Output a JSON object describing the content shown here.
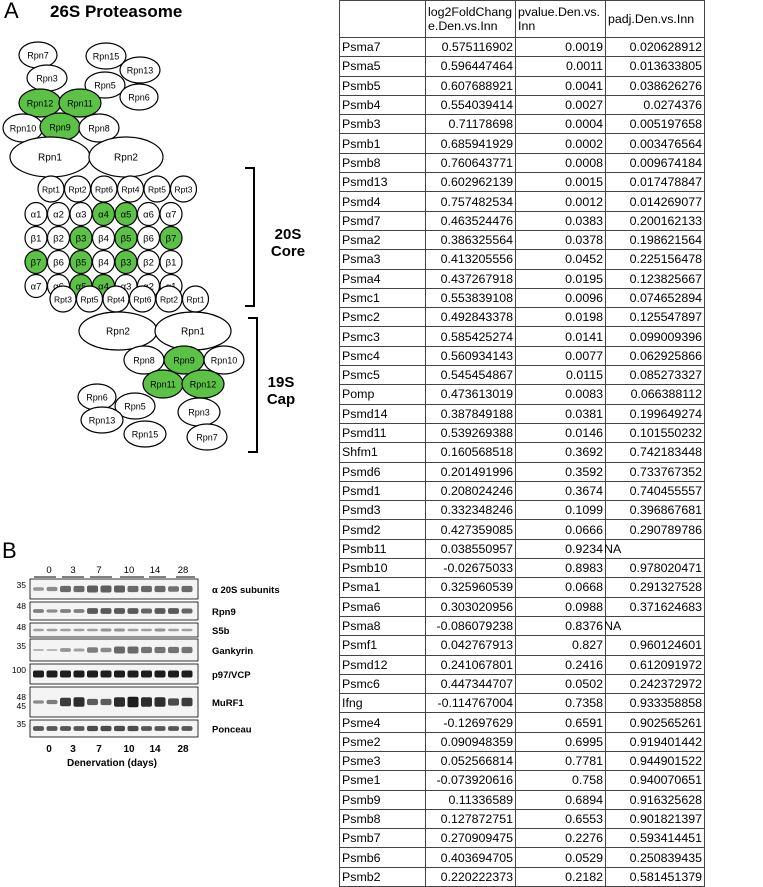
{
  "panel_a": {
    "letter": "A",
    "title": "26S Proteasome",
    "top_cap": {
      "rpn_subunits": [
        "Rpn7",
        "Rpn15",
        "Rpn3",
        "Rpn13",
        "Rpn5",
        "Rpn6",
        "Rpn12",
        "Rpn11",
        "Rpn10",
        "Rpn9",
        "Rpn8",
        "Rpn1",
        "Rpn2"
      ],
      "rpt_ring": [
        "Rpt1",
        "Rpt2",
        "Rpt6",
        "Rpt4",
        "Rpt5",
        "Rpt3"
      ]
    },
    "core_rows": [
      [
        "α1",
        "α2",
        "α3",
        "α4",
        "α5",
        "α6",
        "α7"
      ],
      [
        "β1",
        "β2",
        "β3",
        "β4",
        "β5",
        "β6",
        "β7"
      ],
      [
        "β7",
        "β6",
        "β5",
        "β4",
        "β3",
        "β2",
        "β1"
      ],
      [
        "α7",
        "α6",
        "α5",
        "α4",
        "α3",
        "α2",
        "α1"
      ]
    ],
    "bottom_rpt_ring": [
      "Rpt3",
      "Rpt5",
      "Rpt4",
      "Rpt6",
      "Rpt2",
      "Rpt1"
    ],
    "bottom_cap": {
      "rpn_subunits": [
        "Rpn2",
        "Rpn1",
        "Rpn8",
        "Rpn9",
        "Rpn10",
        "Rpn11",
        "Rpn12",
        "Rpn6",
        "Rpn5",
        "Rpn3",
        "Rpn13",
        "Rpn15",
        "Rpn7"
      ]
    },
    "core_label_line1": "20S",
    "core_label_line2": "Core",
    "cap_label_line1": "19S",
    "cap_label_line2": "Cap",
    "highlight_color": "#5cc246"
  },
  "panel_b": {
    "letter": "B",
    "days_top": [
      "0",
      "3",
      "7",
      "10",
      "14",
      "28"
    ],
    "days_bottom": [
      "0",
      "3",
      "7",
      "10",
      "14",
      "28"
    ],
    "x_axis_label": "Denervation (days)",
    "blots": [
      {
        "mw": "35",
        "label": "α 20S subunits"
      },
      {
        "mw": "48",
        "label": "Rpn9"
      },
      {
        "mw": "48",
        "label": "S5b"
      },
      {
        "mw": "35",
        "label": "Gankyrin"
      },
      {
        "mw": "100",
        "label": "p97/VCP"
      },
      {
        "mw": "48",
        "label": "MuRF1"
      },
      {
        "mw": "35",
        "label": "Ponceau"
      }
    ],
    "mw_extra": "45"
  },
  "table": {
    "headers": [
      "",
      "log2FoldChange.Den.vs.Inn",
      "pvalue.Den.vs.Inn",
      "padj.Den.vs.Inn"
    ],
    "rows": [
      [
        "Psma7",
        "0.575116902",
        "0.0019",
        "0.020628912"
      ],
      [
        "Psma5",
        "0.596447464",
        "0.0011",
        "0.013633805"
      ],
      [
        "Psmb5",
        "0.607688921",
        "0.0041",
        "0.038626276"
      ],
      [
        "Psmb4",
        "0.554039414",
        "0.0027",
        "0.0274376"
      ],
      [
        "Psmb3",
        "0.71178698",
        "0.0004",
        "0.005197658"
      ],
      [
        "Psmb1",
        "0.685941929",
        "0.0002",
        "0.003476564"
      ],
      [
        "Psmb8",
        "0.760643771",
        "0.0008",
        "0.009674184"
      ],
      [
        "Psmd13",
        "0.602962139",
        "0.0015",
        "0.017478847"
      ],
      [
        "Psmd4",
        "0.757482534",
        "0.0012",
        "0.014269077"
      ],
      [
        "Psmd7",
        "0.463524476",
        "0.0383",
        "0.200162133"
      ],
      [
        "Psma2",
        "0.386325564",
        "0.0378",
        "0.198621564"
      ],
      [
        "Psma3",
        "0.413205556",
        "0.0452",
        "0.225156478"
      ],
      [
        "Psma4",
        "0.437267918",
        "0.0195",
        "0.123825667"
      ],
      [
        "Psmc1",
        "0.553839108",
        "0.0096",
        "0.074652894"
      ],
      [
        "Psmc2",
        "0.492843378",
        "0.0198",
        "0.125547897"
      ],
      [
        "Psmc3",
        "0.585425274",
        "0.0141",
        "0.099009396"
      ],
      [
        "Psmc4",
        "0.560934143",
        "0.0077",
        "0.062925866"
      ],
      [
        "Psmc5",
        "0.545454867",
        "0.0115",
        "0.085273327"
      ],
      [
        "Pomp",
        "0.473613019",
        "0.0083",
        "0.066388112"
      ],
      [
        "Psmd14",
        "0.387849188",
        "0.0381",
        "0.199649274"
      ],
      [
        "Psmd11",
        "0.539269388",
        "0.0146",
        "0.101550232"
      ],
      [
        "Shfm1",
        "0.160568518",
        "0.3692",
        "0.742183448"
      ],
      [
        "Psmd6",
        "0.201491996",
        "0.3592",
        "0.733767352"
      ],
      [
        "Psmd1",
        "0.208024246",
        "0.3674",
        "0.740455557"
      ],
      [
        "Psmd3",
        "0.332348246",
        "0.1099",
        "0.396867681"
      ],
      [
        "Psmd2",
        "0.427359085",
        "0.0666",
        "0.290789786"
      ],
      [
        "Psmb11",
        "0.038550957",
        "0.9234",
        "NA"
      ],
      [
        "Psmb10",
        "-0.02675033",
        "0.8983",
        "0.978020471"
      ],
      [
        "Psma1",
        "0.325960539",
        "0.0668",
        "0.291327528"
      ],
      [
        "Psma6",
        "0.303020956",
        "0.0988",
        "0.371624683"
      ],
      [
        "Psma8",
        "-0.086079238",
        "0.8376",
        "NA"
      ],
      [
        "Psmf1",
        "0.042767913",
        "0.827",
        "0.960124601"
      ],
      [
        "Psmd12",
        "0.241067801",
        "0.2416",
        "0.612091972"
      ],
      [
        "Psmc6",
        "0.447344707",
        "0.0502",
        "0.242372972"
      ],
      [
        "Ifng",
        "-0.114767004",
        "0.7358",
        "0.933358858"
      ],
      [
        "Psme4",
        "-0.12697629",
        "0.6591",
        "0.902565261"
      ],
      [
        "Psme2",
        "0.090948359",
        "0.6995",
        "0.919401442"
      ],
      [
        "Psme3",
        "0.052566814",
        "0.7781",
        "0.944901522"
      ],
      [
        "Psme1",
        "-0.073920616",
        "0.758",
        "0.940070651"
      ],
      [
        "Psmb9",
        "0.11336589",
        "0.6894",
        "0.916325628"
      ],
      [
        "Psmb8",
        "0.127872751",
        "0.6553",
        "0.901821397"
      ],
      [
        "Psmb7",
        "0.270909475",
        "0.2276",
        "0.593414451"
      ],
      [
        "Psmb6",
        "0.403694705",
        "0.0529",
        "0.250839435"
      ],
      [
        "Psmb2",
        "0.220222373",
        "0.2182",
        "0.581451379"
      ]
    ]
  }
}
